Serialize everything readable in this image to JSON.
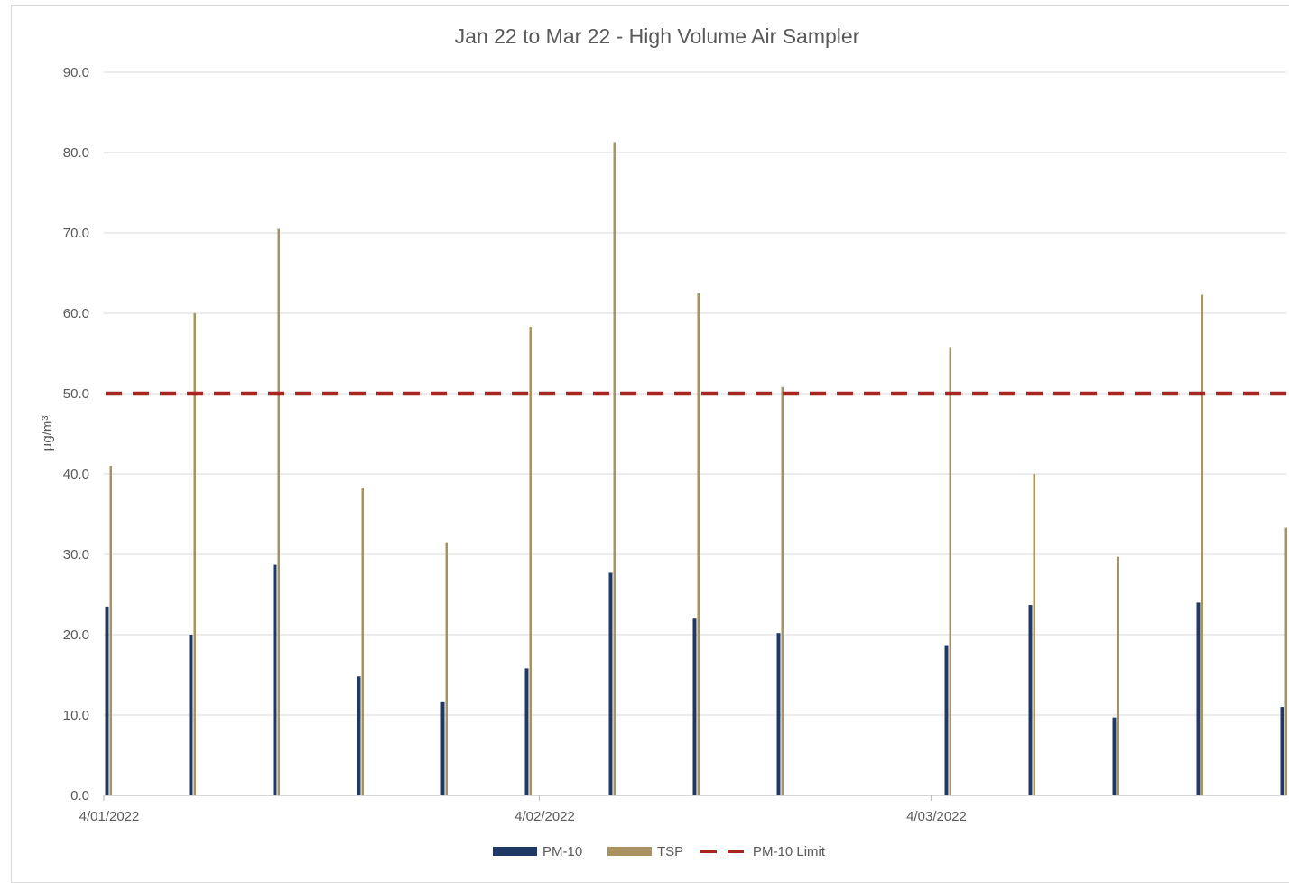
{
  "chart_data": {
    "type": "bar",
    "title": "Jan 22 to Mar 22 - High Volume Air Sampler",
    "xlabel": "",
    "ylabel": "µg/m³",
    "ylim": [
      0,
      90
    ],
    "y_ticks": [
      "0.0",
      "10.0",
      "20.0",
      "30.0",
      "40.0",
      "50.0",
      "60.0",
      "70.0",
      "80.0",
      "90.0"
    ],
    "x_tick_labels": [
      "4/01/2022",
      "4/02/2022",
      "4/03/2022"
    ],
    "x_range": [
      "2022-01-04",
      "2022-03-29"
    ],
    "grid": true,
    "legend_position": "bottom",
    "dates": [
      "2022-01-04",
      "2022-01-10",
      "2022-01-16",
      "2022-01-22",
      "2022-01-28",
      "2022-02-03",
      "2022-02-09",
      "2022-02-15",
      "2022-02-21",
      "2022-03-05",
      "2022-03-11",
      "2022-03-17",
      "2022-03-23",
      "2022-03-29"
    ],
    "series": [
      {
        "name": "PM-10",
        "color": "#1f3864",
        "values": [
          23.5,
          20.0,
          28.7,
          14.8,
          11.7,
          15.8,
          27.7,
          22.0,
          20.2,
          18.7,
          23.7,
          9.7,
          24.0,
          11.0
        ]
      },
      {
        "name": "TSP",
        "color": "#a8925f",
        "values": [
          41.0,
          60.0,
          70.5,
          38.3,
          31.5,
          58.3,
          81.3,
          62.5,
          50.8,
          55.8,
          40.0,
          29.7,
          62.3,
          33.3
        ]
      }
    ],
    "limit": {
      "name": "PM-10 Limit",
      "value": 50.0,
      "color": "#a82524"
    }
  }
}
